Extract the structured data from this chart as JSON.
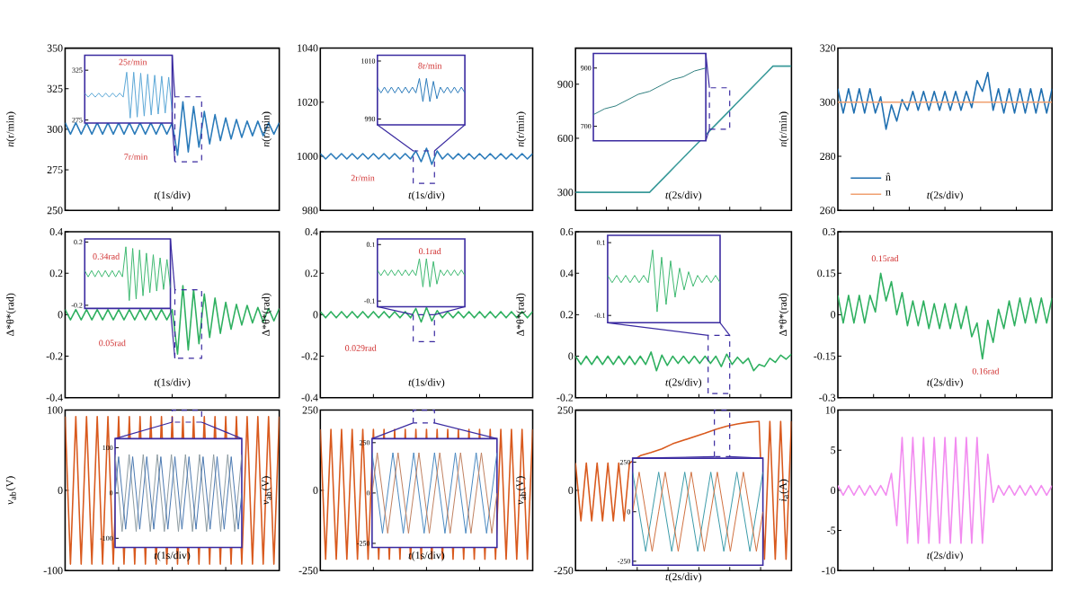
{
  "chart_data": [
    {
      "type": "line",
      "ylim": [
        250,
        350
      ],
      "yticks": [
        250,
        275,
        300,
        325,
        350
      ],
      "tick_labels": "y",
      "xlabel": "*t*(1s/div)",
      "ylabel": "*n*(r/min)",
      "categories": [
        null,
        null,
        null,
        null,
        null,
        null,
        null,
        null,
        null,
        null,
        null,
        null,
        null,
        null,
        null,
        null,
        null,
        null,
        null,
        null,
        null,
        null,
        null,
        null,
        null,
        null,
        null,
        null,
        null,
        null,
        null,
        null,
        null,
        null,
        null,
        null,
        null,
        null,
        null,
        null,
        null
      ],
      "series": [
        {
          "color": "#2b7bba",
          "values": [
            304,
            297,
            304,
            297,
            304,
            297,
            304,
            297,
            304,
            297,
            304,
            297,
            304,
            297,
            304,
            297,
            304,
            297,
            304,
            297,
            304,
            284,
            317,
            286,
            314,
            289,
            311,
            291,
            309,
            293,
            307,
            294,
            306,
            295,
            305,
            296,
            305,
            296,
            304,
            297,
            304
          ]
        }
      ],
      "annotations": [
        "7r/min"
      ]
    },
    {
      "type": "line",
      "ylim": [
        272,
        340
      ],
      "yticks": [
        325,
        275
      ],
      "tick_labels": "y",
      "categories": [
        null,
        null,
        null,
        null,
        null,
        null,
        null,
        null,
        null,
        null,
        null,
        null,
        null,
        null,
        null,
        null,
        null,
        null,
        null,
        null,
        null,
        null,
        null,
        null,
        null,
        null
      ],
      "series": [
        {
          "color": "#5aa6d6",
          "values": [
            302,
            298,
            302,
            298,
            302,
            298,
            302,
            298,
            302,
            298,
            302,
            298,
            323,
            277,
            323,
            278,
            322,
            279,
            321,
            280,
            320,
            281,
            319,
            282,
            318,
            283
          ]
        }
      ],
      "annotations": [
        "25r/min"
      ]
    },
    {
      "type": "line",
      "ylim": [
        980,
        1040
      ],
      "yticks": [
        980,
        1000,
        1020,
        1040
      ],
      "tick_labels": "y",
      "xlabel": "*t*(1s/div)",
      "ylabel": "*n*(r/min)",
      "categories": [
        null,
        null,
        null,
        null,
        null,
        null,
        null,
        null,
        null,
        null,
        null,
        null,
        null,
        null,
        null,
        null,
        null,
        null,
        null,
        null,
        null,
        null,
        null,
        null,
        null,
        null,
        null,
        null,
        null,
        null,
        null,
        null,
        null,
        null,
        null,
        null,
        null,
        null,
        null,
        null,
        null
      ],
      "series": [
        {
          "color": "#2b7bba",
          "values": [
            1001,
            999,
            1001,
            999,
            1001,
            999,
            1001,
            999,
            1001,
            999,
            1001,
            999,
            1001,
            999,
            1001,
            999,
            1001,
            999,
            1002,
            998,
            1003,
            997,
            1002,
            999,
            1001,
            999,
            1001,
            999,
            1001,
            999,
            1001,
            999,
            1001,
            999,
            1001,
            999,
            1001,
            999,
            1001,
            999,
            1001
          ]
        }
      ],
      "annotations": [
        "2r/min"
      ]
    },
    {
      "type": "line",
      "ylim": [
        988,
        1012
      ],
      "yticks": [
        1010,
        990
      ],
      "tick_labels": "y",
      "categories": [
        null,
        null,
        null,
        null,
        null,
        null,
        null,
        null,
        null,
        null,
        null,
        null,
        null,
        null,
        null,
        null,
        null,
        null,
        null,
        null,
        null,
        null,
        null,
        null,
        null,
        null
      ],
      "series": [
        {
          "color": "#2b7bba",
          "values": [
            1001,
            999,
            1001,
            999,
            1001,
            999,
            1001,
            999,
            1001,
            999,
            1001,
            999,
            1004,
            996,
            1004,
            996,
            1003,
            997,
            1001,
            999,
            1001,
            999,
            1001,
            999,
            1001,
            999
          ]
        }
      ],
      "annotations": [
        "8r/min"
      ]
    },
    {
      "type": "line",
      "ylim": [
        200,
        1100
      ],
      "yticks": [
        300,
        600,
        900
      ],
      "tick_labels": "y",
      "xlabel": "*t*(2s/div)",
      "ylabel": "*n*(r/min)",
      "categories": [
        null,
        null,
        null,
        null,
        null,
        null,
        null,
        null,
        null,
        null,
        null,
        null,
        null,
        null,
        null,
        null,
        null,
        null,
        null,
        null,
        null,
        null,
        null,
        null,
        null,
        null,
        null,
        null,
        null,
        null,
        null,
        null,
        null,
        null,
        null,
        null
      ],
      "series": [
        {
          "color": "#3a9a9a",
          "values": [
            300,
            300,
            300,
            300,
            300,
            300,
            300,
            300,
            300,
            300,
            300,
            300,
            300,
            335,
            370,
            405,
            440,
            475,
            510,
            545,
            580,
            615,
            650,
            685,
            720,
            755,
            790,
            825,
            860,
            895,
            930,
            965,
            1000,
            1000,
            1000,
            1000
          ]
        }
      ]
    },
    {
      "type": "line",
      "ylim": [
        650,
        950
      ],
      "yticks": [
        900,
        700
      ],
      "tick_labels": "y",
      "categories": [
        null,
        null,
        null,
        null,
        null,
        null,
        null,
        null,
        null,
        null,
        null
      ],
      "series": [
        {
          "color": "#2f7f7f",
          "values": [
            740,
            760,
            770,
            790,
            810,
            820,
            840,
            860,
            870,
            890,
            900
          ]
        }
      ]
    },
    {
      "type": "line",
      "ylim": [
        260,
        320
      ],
      "yticks": [
        260,
        280,
        300,
        320
      ],
      "tick_labels": "y",
      "xlabel": "*t*(2s/div)",
      "ylabel": "*n*(r/min)",
      "legend": "bottom left",
      "categories": [
        null,
        null,
        null,
        null,
        null,
        null,
        null,
        null,
        null,
        null,
        null,
        null,
        null,
        null,
        null,
        null,
        null,
        null,
        null,
        null,
        null,
        null,
        null,
        null,
        null,
        null,
        null,
        null,
        null,
        null,
        null,
        null,
        null,
        null,
        null,
        null,
        null,
        null,
        null,
        null,
        null
      ],
      "series": [
        {
          "name": "n̂",
          "color": "#1f6fb0",
          "values": [
            305,
            296,
            305,
            296,
            305,
            296,
            305,
            296,
            302,
            290,
            299,
            293,
            301,
            297,
            304,
            297,
            304,
            297,
            304,
            297,
            304,
            297,
            304,
            297,
            304,
            298,
            308,
            304,
            311,
            297,
            305,
            296,
            305,
            296,
            305,
            296,
            305,
            296,
            305,
            296,
            305
          ]
        },
        {
          "name": "n",
          "color": "#f0a070",
          "values": [
            300,
            300,
            300,
            300,
            300,
            300,
            300,
            300,
            300,
            300,
            300,
            300,
            300,
            300,
            300,
            300,
            300,
            300,
            300,
            300,
            300,
            300,
            300,
            300,
            300,
            300,
            300,
            300,
            300,
            300,
            300,
            300,
            300,
            300,
            300,
            300,
            300,
            300,
            300,
            300,
            300
          ]
        }
      ]
    },
    {
      "type": "line",
      "ylim": [
        -0.4,
        0.4
      ],
      "yticks": [
        -0.4,
        -0.2,
        0,
        0.2,
        0.4
      ],
      "tick_labels": "y",
      "xlabel": "*t*(1s/div)",
      "ylabel": "Δ*θ*(rad)",
      "categories": [
        null,
        null,
        null,
        null,
        null,
        null,
        null,
        null,
        null,
        null,
        null,
        null,
        null,
        null,
        null,
        null,
        null,
        null,
        null,
        null,
        null,
        null,
        null,
        null,
        null,
        null,
        null,
        null,
        null,
        null,
        null,
        null,
        null,
        null,
        null,
        null,
        null,
        null,
        null,
        null,
        null
      ],
      "series": [
        {
          "color": "#2fb060",
          "values": [
            0.025,
            -0.025,
            0.025,
            -0.025,
            0.025,
            -0.025,
            0.025,
            -0.025,
            0.025,
            -0.025,
            0.025,
            -0.025,
            0.025,
            -0.025,
            0.025,
            -0.025,
            0.025,
            -0.025,
            0.025,
            -0.025,
            0.025,
            -0.19,
            0.14,
            -0.17,
            0.12,
            -0.14,
            0.1,
            -0.11,
            0.08,
            -0.09,
            0.06,
            -0.07,
            0.05,
            -0.05,
            0.045,
            -0.04,
            0.035,
            -0.035,
            0.03,
            -0.03,
            0.03
          ]
        }
      ],
      "annotations": [
        "0.05rad"
      ]
    },
    {
      "type": "line",
      "ylim": [
        -0.22,
        0.22
      ],
      "yticks": [
        0.2,
        -0.2
      ],
      "tick_labels": "y",
      "categories": [
        null,
        null,
        null,
        null,
        null,
        null,
        null,
        null,
        null,
        null,
        null,
        null,
        null,
        null,
        null,
        null,
        null,
        null,
        null,
        null,
        null,
        null,
        null,
        null,
        null,
        null
      ],
      "series": [
        {
          "color": "#3cb870",
          "values": [
            0.02,
            -0.02,
            0.02,
            -0.02,
            0.02,
            -0.02,
            0.02,
            -0.02,
            0.02,
            -0.02,
            0.02,
            -0.02,
            0.17,
            -0.17,
            0.16,
            -0.16,
            0.15,
            -0.14,
            0.13,
            -0.12,
            0.12,
            -0.11,
            0.1,
            -0.1,
            0.09,
            -0.09
          ]
        }
      ],
      "annotations": [
        "0.34rad"
      ]
    },
    {
      "type": "line",
      "ylim": [
        -0.4,
        0.4
      ],
      "yticks": [
        -0.4,
        -0.2,
        0,
        0.2,
        0.4
      ],
      "tick_labels": "y",
      "xlabel": "*t*(1s/div)",
      "ylabel": "Δ*θ*(rad)",
      "categories": [
        null,
        null,
        null,
        null,
        null,
        null,
        null,
        null,
        null,
        null,
        null,
        null,
        null,
        null,
        null,
        null,
        null,
        null,
        null,
        null,
        null,
        null,
        null,
        null,
        null,
        null,
        null,
        null,
        null,
        null,
        null,
        null,
        null,
        null,
        null,
        null,
        null,
        null,
        null,
        null,
        null
      ],
      "series": [
        {
          "color": "#2fb060",
          "values": [
            0.015,
            -0.015,
            0.015,
            -0.015,
            0.015,
            -0.015,
            0.015,
            -0.015,
            0.015,
            -0.015,
            0.015,
            -0.015,
            0.015,
            -0.015,
            0.015,
            -0.015,
            0.015,
            -0.015,
            0.03,
            -0.035,
            0.035,
            -0.03,
            0.02,
            -0.015,
            0.015,
            -0.015,
            0.015,
            -0.015,
            0.015,
            -0.015,
            0.015,
            -0.015,
            0.015,
            -0.015,
            0.015,
            -0.015,
            0.015,
            -0.015,
            0.015,
            -0.015,
            0.015
          ]
        }
      ],
      "annotations": [
        "0.029rad"
      ]
    },
    {
      "type": "line",
      "ylim": [
        -0.12,
        0.12
      ],
      "yticks": [
        0.1,
        -0.1
      ],
      "tick_labels": "y",
      "categories": [
        null,
        null,
        null,
        null,
        null,
        null,
        null,
        null,
        null,
        null,
        null,
        null,
        null,
        null,
        null,
        null,
        null,
        null,
        null,
        null,
        null,
        null,
        null,
        null,
        null,
        null
      ],
      "series": [
        {
          "color": "#3cb870",
          "values": [
            0.01,
            -0.01,
            0.01,
            -0.01,
            0.01,
            -0.01,
            0.01,
            -0.01,
            0.01,
            -0.01,
            0.01,
            -0.01,
            0.05,
            -0.05,
            0.05,
            -0.05,
            0.04,
            -0.04,
            0.01,
            -0.01,
            0.01,
            -0.01,
            0.01,
            -0.01,
            0.01,
            -0.01
          ]
        }
      ],
      "annotations": [
        "0.1rad"
      ]
    },
    {
      "type": "line",
      "ylim": [
        -0.2,
        0.6
      ],
      "yticks": [
        -0.2,
        0,
        0.2,
        0.4,
        0.6
      ],
      "tick_labels": "y",
      "xlabel": "*t*(2s/div)",
      "ylabel": "Δ*θ*(rad)",
      "categories": [
        null,
        null,
        null,
        null,
        null,
        null,
        null,
        null,
        null,
        null,
        null,
        null,
        null,
        null,
        null,
        null,
        null,
        null,
        null,
        null,
        null,
        null,
        null,
        null,
        null,
        null,
        null,
        null,
        null,
        null,
        null,
        null,
        null,
        null,
        null,
        null,
        null,
        null,
        null,
        null,
        null
      ],
      "series": [
        {
          "color": "#2fb060",
          "values": [
            0,
            -0.04,
            0,
            -0.04,
            0,
            -0.04,
            0,
            -0.04,
            0,
            -0.04,
            0,
            -0.04,
            0,
            -0.04,
            0.02,
            -0.07,
            0.005,
            -0.045,
            0,
            -0.035,
            0,
            -0.035,
            0,
            -0.035,
            0,
            -0.035,
            0,
            -0.05,
            0.01,
            -0.04,
            -0.005,
            -0.035,
            -0.01,
            -0.07,
            -0.04,
            -0.05,
            -0.01,
            -0.03,
            0.005,
            -0.015,
            0.01
          ]
        }
      ]
    },
    {
      "type": "line",
      "ylim": [
        -0.12,
        0.12
      ],
      "yticks": [
        0.1,
        -0.1
      ],
      "tick_labels": "y",
      "categories": [
        null,
        null,
        null,
        null,
        null,
        null,
        null,
        null,
        null,
        null,
        null,
        null,
        null,
        null,
        null,
        null,
        null,
        null,
        null,
        null,
        null,
        null,
        null,
        null,
        null,
        null
      ],
      "series": [
        {
          "color": "#3cb870",
          "values": [
            0.01,
            -0.01,
            0.01,
            -0.01,
            0.01,
            -0.01,
            0.01,
            -0.01,
            0.01,
            -0.01,
            0.08,
            -0.09,
            0.06,
            -0.07,
            0.05,
            -0.05,
            0.03,
            -0.03,
            0.02,
            -0.02,
            0.01,
            -0.01,
            0.01,
            -0.01,
            0.01,
            -0.01
          ]
        }
      ]
    },
    {
      "type": "line",
      "ylim": [
        -0.3,
        0.3
      ],
      "yticks": [
        -0.3,
        -0.15,
        0,
        0.15,
        0.3
      ],
      "tick_labels": "y",
      "xlabel": "*t*(2s/div)",
      "ylabel": "Δ*θ*(rad)",
      "categories": [
        null,
        null,
        null,
        null,
        null,
        null,
        null,
        null,
        null,
        null,
        null,
        null,
        null,
        null,
        null,
        null,
        null,
        null,
        null,
        null,
        null,
        null,
        null,
        null,
        null,
        null,
        null,
        null,
        null,
        null,
        null,
        null,
        null,
        null,
        null,
        null,
        null,
        null,
        null,
        null,
        null
      ],
      "series": [
        {
          "color": "#2fb060",
          "values": [
            0.07,
            -0.03,
            0.07,
            -0.03,
            0.07,
            -0.03,
            0.07,
            0.01,
            0.15,
            0.05,
            0.12,
            0,
            0.08,
            -0.04,
            0.05,
            -0.04,
            0.05,
            -0.05,
            0.04,
            -0.05,
            0.04,
            -0.05,
            0.04,
            -0.05,
            0.03,
            -0.08,
            -0.03,
            -0.16,
            -0.02,
            -0.1,
            0.02,
            -0.05,
            0.05,
            -0.04,
            0.06,
            -0.03,
            0.06,
            -0.03,
            0.06,
            -0.03,
            0.06
          ]
        }
      ],
      "annotations": [
        "0.15rad",
        "0.16rad"
      ]
    },
    {
      "type": "line",
      "ylim": [
        -100,
        100
      ],
      "yticks": [
        -100,
        0,
        100
      ],
      "tick_labels": "y",
      "xlabel": "*t*(1s/div)",
      "ylabel": "*v*$_{ab}$(V)",
      "categories": [
        null,
        null,
        null,
        null,
        null,
        null,
        null,
        null,
        null,
        null,
        null,
        null,
        null,
        null,
        null,
        null,
        null,
        null,
        null,
        null,
        null,
        null,
        null,
        null,
        null,
        null,
        null,
        null,
        null,
        null,
        null,
        null,
        null,
        null,
        null,
        null,
        null,
        null,
        null,
        null,
        null
      ],
      "series": [
        {
          "color": "#d95a1e",
          "values": [
            92,
            -92,
            92,
            -92,
            92,
            -92,
            92,
            -92,
            92,
            -92,
            92,
            -92,
            92,
            -92,
            92,
            -92,
            92,
            -92,
            92,
            -92,
            92,
            -92,
            92,
            -92,
            92,
            -92,
            92,
            -92,
            92,
            -92,
            92,
            -92,
            92,
            -92,
            92,
            -92,
            92,
            -92,
            92,
            -92,
            92
          ]
        }
      ]
    },
    {
      "type": "line",
      "ylim": [
        -120,
        120
      ],
      "yticks": [
        100,
        0,
        -100
      ],
      "tick_labels": "y",
      "categories": [
        null,
        null,
        null,
        null,
        null,
        null,
        null,
        null,
        null,
        null,
        null,
        null,
        null,
        null,
        null,
        null,
        null,
        null,
        null,
        null,
        null,
        null,
        null,
        null,
        null,
        null,
        null,
        null,
        null,
        null,
        null,
        null,
        null,
        null,
        null,
        null,
        null
      ],
      "series": [
        {
          "color": "#8c9aa0",
          "values": [
            85,
            0,
            -85,
            0,
            85,
            0,
            -85,
            0,
            85,
            0,
            -85,
            0,
            85,
            0,
            -85,
            0,
            85,
            0,
            -85,
            0,
            85,
            0,
            -85,
            0,
            85,
            0,
            -85,
            0,
            85,
            0,
            -85,
            0,
            85,
            0,
            -85,
            0,
            85
          ]
        },
        {
          "color": "#4a78b0",
          "values": [
            0,
            80,
            0,
            -80,
            0,
            80,
            0,
            -80,
            0,
            80,
            0,
            -80,
            0,
            80,
            0,
            -80,
            0,
            80,
            0,
            -80,
            0,
            80,
            0,
            -80,
            0,
            80,
            0,
            -80,
            0,
            80,
            0,
            -80,
            0,
            80,
            0,
            -80,
            0
          ]
        }
      ]
    },
    {
      "type": "line",
      "ylim": [
        -250,
        250
      ],
      "yticks": [
        -250,
        0,
        250
      ],
      "tick_labels": "y",
      "xlabel": "*t*(1s/div)",
      "ylabel": "*v*$_{ab}$(V)",
      "categories": [
        null,
        null,
        null,
        null,
        null,
        null,
        null,
        null,
        null,
        null,
        null,
        null,
        null,
        null,
        null,
        null,
        null,
        null,
        null,
        null,
        null,
        null,
        null,
        null,
        null,
        null,
        null,
        null,
        null,
        null,
        null,
        null,
        null,
        null,
        null,
        null,
        null,
        null,
        null,
        null,
        null
      ],
      "series": [
        {
          "color": "#d95a1e",
          "values": [
            190,
            -215,
            190,
            -215,
            190,
            -215,
            190,
            -215,
            190,
            -215,
            190,
            -215,
            190,
            -215,
            190,
            -215,
            190,
            -215,
            190,
            -215,
            190,
            -215,
            190,
            -215,
            190,
            -215,
            190,
            -215,
            190,
            -215,
            190,
            -215,
            190,
            -215,
            190,
            -215,
            190,
            -215,
            190,
            -215,
            190
          ]
        }
      ]
    },
    {
      "type": "line",
      "ylim": [
        -270,
        270
      ],
      "yticks": [
        250,
        0,
        -250
      ],
      "tick_labels": "y",
      "categories": [
        null,
        null,
        null,
        null,
        null,
        null,
        null,
        null,
        null,
        null,
        null,
        null,
        null,
        null,
        null,
        null,
        null,
        null,
        null,
        null,
        null,
        null,
        null,
        null,
        null
      ],
      "series": [
        {
          "color": "#4a88c0",
          "values": [
            200,
            0,
            -200,
            0,
            200,
            0,
            -200,
            0,
            200,
            0,
            -200,
            0,
            200,
            0,
            -200,
            0,
            200,
            0,
            -200,
            0,
            200,
            0,
            -200,
            0,
            200
          ]
        },
        {
          "color": "#c08060",
          "values": [
            0,
            200,
            0,
            -200,
            0,
            200,
            0,
            -200,
            0,
            200,
            0,
            -200,
            0,
            200,
            0,
            -200,
            0,
            200,
            0,
            -200,
            0,
            200,
            0,
            -200,
            0
          ]
        }
      ]
    },
    {
      "type": "line",
      "ylim": [
        -250,
        250
      ],
      "yticks": [
        -250,
        0,
        250
      ],
      "tick_labels": "y",
      "xlabel": "*t*(2s/div)",
      "ylabel": "*v*$_{ab}$(V)",
      "categories": [
        null,
        null,
        null,
        null,
        null,
        null,
        null,
        null,
        null,
        null,
        null,
        null,
        null,
        null,
        null,
        null,
        null,
        null,
        null,
        null,
        null,
        null,
        null,
        null,
        null,
        null,
        null,
        null,
        null,
        null,
        null,
        null,
        null,
        null,
        null,
        null,
        null,
        null,
        null,
        null,
        null
      ],
      "series": [
        {
          "color": "#d95a1e",
          "values": [
            85,
            -95,
            85,
            -95,
            85,
            -95,
            85,
            -95,
            85,
            -95,
            85,
            null,
            108,
            null,
            118,
            null,
            129,
            null,
            145,
            null,
            156,
            null,
            167,
            null,
            178,
            null,
            190,
            null,
            200,
            null,
            207,
            null,
            212,
            null,
            215,
            -215,
            215,
            -215,
            215,
            -215,
            215
          ]
        }
      ]
    },
    {
      "type": "line",
      "ylim": [
        -270,
        270
      ],
      "yticks": [
        250,
        0,
        -250
      ],
      "tick_labels": "y",
      "categories": [
        null,
        null,
        null,
        null,
        null,
        null,
        null,
        null,
        null,
        null,
        null,
        null,
        null,
        null,
        null,
        null,
        null,
        null,
        null,
        null,
        null
      ],
      "series": [
        {
          "color": "#3a9aa8",
          "values": [
            200,
            0,
            -200,
            0,
            200,
            0,
            -200,
            0,
            200,
            0,
            -200,
            0,
            200,
            0,
            -200,
            0,
            200,
            0,
            -200,
            0,
            200
          ]
        },
        {
          "color": "#d07040",
          "values": [
            0,
            200,
            0,
            -200,
            0,
            200,
            0,
            -200,
            0,
            200,
            0,
            -200,
            0,
            200,
            0,
            -200,
            0,
            200,
            0,
            -200,
            0
          ]
        }
      ]
    },
    {
      "type": "line",
      "ylim": [
        -10,
        10
      ],
      "yticks": [
        -10,
        -5,
        0,
        5,
        10
      ],
      "tick_labels": "y",
      "xlabel": "*t*(2s/div)",
      "ylabel": "*i*$_{a}$(A)",
      "categories": [
        null,
        null,
        null,
        null,
        null,
        null,
        null,
        null,
        null,
        null,
        null,
        null,
        null,
        null,
        null,
        null,
        null,
        null,
        null,
        null,
        null,
        null,
        null,
        null,
        null,
        null,
        null,
        null,
        null,
        null,
        null,
        null,
        null,
        null,
        null,
        null,
        null,
        null,
        null,
        null,
        null
      ],
      "series": [
        {
          "color": "#f28cf0",
          "values": [
            0.6,
            -0.6,
            0.6,
            -0.6,
            0.6,
            -0.6,
            0.6,
            -0.6,
            0.6,
            -0.6,
            2.1,
            -4.4,
            6.6,
            -6.6,
            6.6,
            -6.6,
            6.6,
            -6.6,
            6.6,
            -6.6,
            6.6,
            -6.6,
            6.6,
            -6.6,
            6.6,
            -6.6,
            6.6,
            -6.6,
            4.5,
            -1.5,
            0.6,
            -0.6,
            0.6,
            -0.6,
            0.6,
            -0.6,
            0.6,
            -0.6,
            0.6,
            -0.6,
            0.6
          ]
        }
      ]
    }
  ]
}
